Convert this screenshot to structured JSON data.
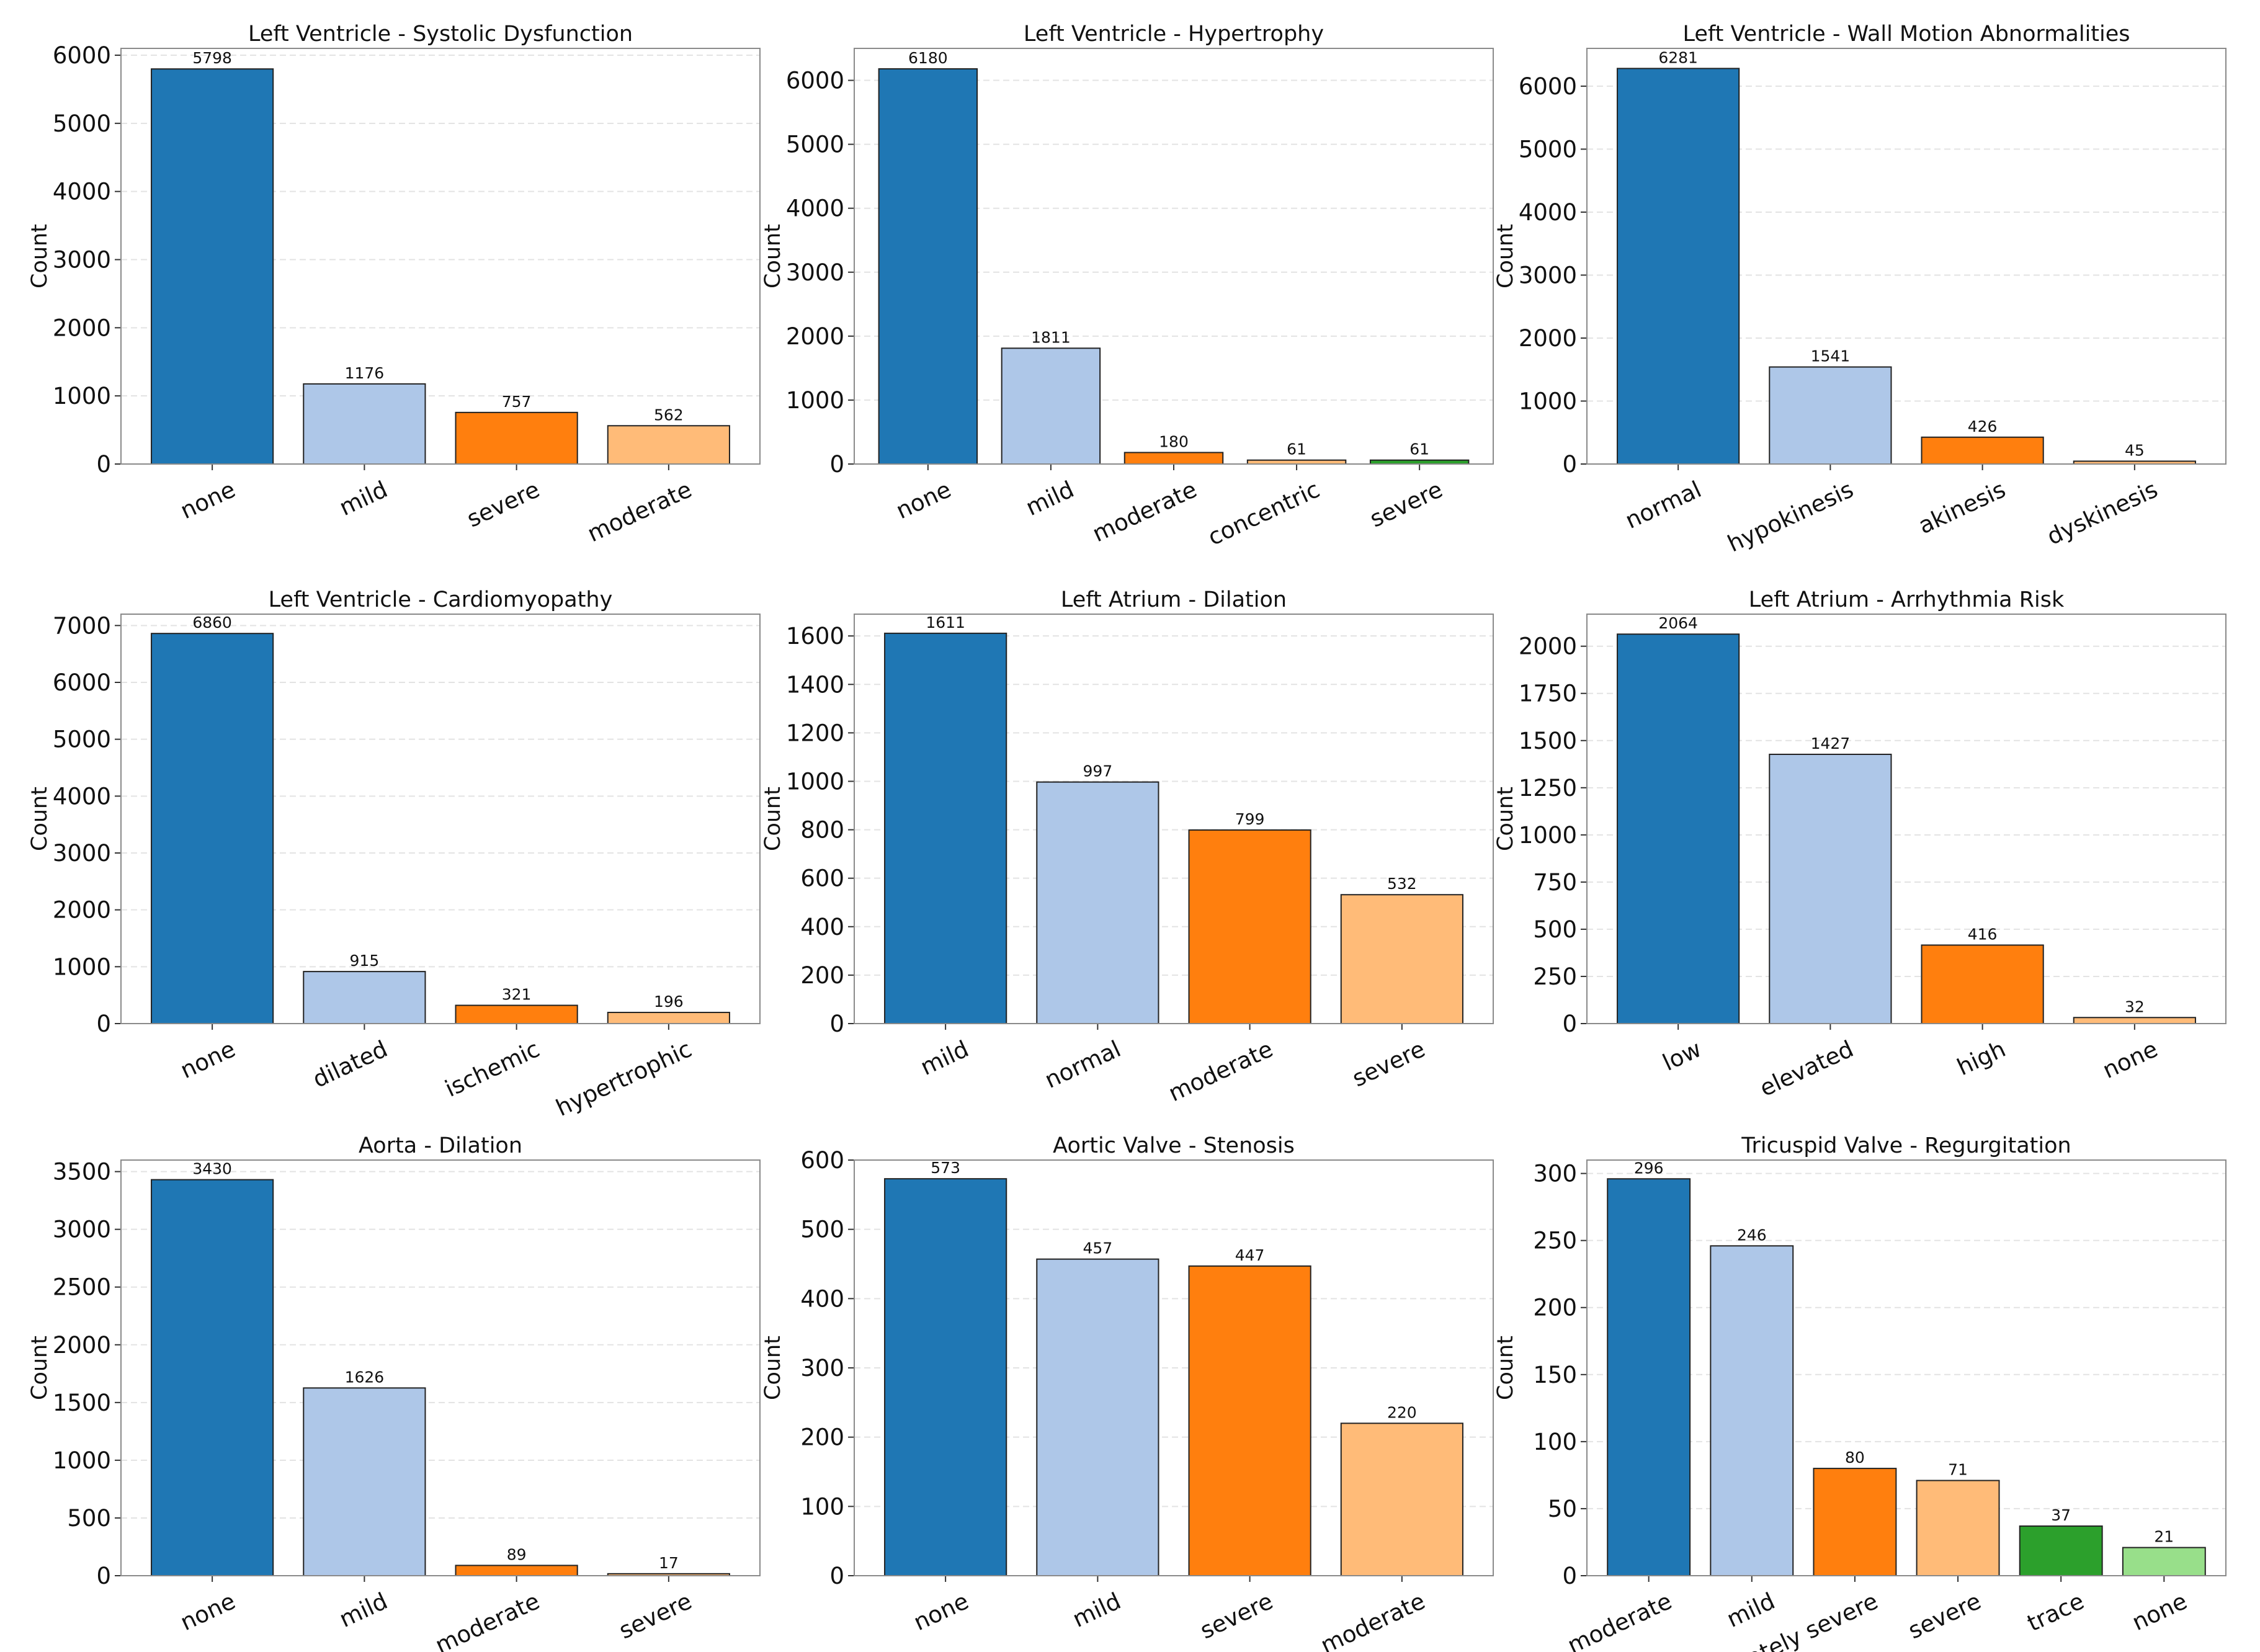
{
  "colors": [
    "#1f77b4",
    "#aec7e8",
    "#ff7f0e",
    "#ffbb78",
    "#2ca02c",
    "#98df8a"
  ],
  "chart_data": [
    {
      "type": "bar",
      "title": "Left Ventricle - Systolic Dysfunction",
      "xlabel": "",
      "ylabel": "Count",
      "categories": [
        "none",
        "mild",
        "severe",
        "moderate"
      ],
      "values": [
        5798,
        1176,
        757,
        562
      ],
      "ylim": [
        0,
        6100
      ],
      "yticks": [
        0,
        1000,
        2000,
        3000,
        4000,
        5000,
        6000
      ],
      "grid": "y",
      "legend": "none"
    },
    {
      "type": "bar",
      "title": "Left Ventricle - Hypertrophy",
      "xlabel": "",
      "ylabel": "Count",
      "categories": [
        "none",
        "mild",
        "moderate",
        "concentric",
        "severe"
      ],
      "values": [
        6180,
        1811,
        180,
        61,
        61
      ],
      "ylim": [
        0,
        6500
      ],
      "yticks": [
        0,
        1000,
        2000,
        3000,
        4000,
        5000,
        6000
      ],
      "grid": "y",
      "legend": "none"
    },
    {
      "type": "bar",
      "title": "Left Ventricle - Wall Motion Abnormalities",
      "xlabel": "",
      "ylabel": "Count",
      "categories": [
        "normal",
        "hypokinesis",
        "akinesis",
        "dyskinesis"
      ],
      "values": [
        6281,
        1541,
        426,
        45
      ],
      "ylim": [
        0,
        6600
      ],
      "yticks": [
        0,
        1000,
        2000,
        3000,
        4000,
        5000,
        6000
      ],
      "grid": "y",
      "legend": "none"
    },
    {
      "type": "bar",
      "title": "Left Ventricle - Cardiomyopathy",
      "xlabel": "",
      "ylabel": "Count",
      "categories": [
        "none",
        "dilated",
        "ischemic",
        "hypertrophic"
      ],
      "values": [
        6860,
        915,
        321,
        196
      ],
      "ylim": [
        0,
        7200
      ],
      "yticks": [
        0,
        1000,
        2000,
        3000,
        4000,
        5000,
        6000,
        7000
      ],
      "grid": "y",
      "legend": "none"
    },
    {
      "type": "bar",
      "title": "Left Atrium - Dilation",
      "xlabel": "",
      "ylabel": "Count",
      "categories": [
        "mild",
        "normal",
        "moderate",
        "severe"
      ],
      "values": [
        1611,
        997,
        799,
        532
      ],
      "ylim": [
        0,
        1690
      ],
      "yticks": [
        0,
        200,
        400,
        600,
        800,
        1000,
        1200,
        1400,
        1600
      ],
      "grid": "y",
      "legend": "none"
    },
    {
      "type": "bar",
      "title": "Left Atrium - Arrhythmia Risk",
      "xlabel": "",
      "ylabel": "Count",
      "categories": [
        "low",
        "elevated",
        "high",
        "none"
      ],
      "values": [
        2064,
        1427,
        416,
        32
      ],
      "ylim": [
        0,
        2170
      ],
      "yticks": [
        0,
        250,
        500,
        750,
        1000,
        1250,
        1500,
        1750,
        2000
      ],
      "grid": "y",
      "legend": "none"
    },
    {
      "type": "bar",
      "title": "Aorta - Dilation",
      "xlabel": "",
      "ylabel": "Count",
      "categories": [
        "none",
        "mild",
        "moderate",
        "severe"
      ],
      "values": [
        3430,
        1626,
        89,
        17
      ],
      "ylim": [
        0,
        3600
      ],
      "yticks": [
        0,
        500,
        1000,
        1500,
        2000,
        2500,
        3000,
        3500
      ],
      "grid": "y",
      "legend": "none"
    },
    {
      "type": "bar",
      "title": "Aortic Valve - Stenosis",
      "xlabel": "",
      "ylabel": "Count",
      "categories": [
        "none",
        "mild",
        "severe",
        "moderate"
      ],
      "values": [
        573,
        457,
        447,
        220
      ],
      "ylim": [
        0,
        600
      ],
      "yticks": [
        0,
        100,
        200,
        300,
        400,
        500,
        600
      ],
      "grid": "y",
      "legend": "none"
    },
    {
      "type": "bar",
      "title": "Tricuspid Valve - Regurgitation",
      "xlabel": "",
      "ylabel": "Count",
      "categories": [
        "moderate",
        "mild",
        "moderately severe",
        "severe",
        "trace",
        "none"
      ],
      "values": [
        296,
        246,
        80,
        71,
        37,
        21
      ],
      "ylim": [
        0,
        310
      ],
      "yticks": [
        0,
        50,
        100,
        150,
        200,
        250,
        300
      ],
      "grid": "y",
      "legend": "none"
    }
  ]
}
